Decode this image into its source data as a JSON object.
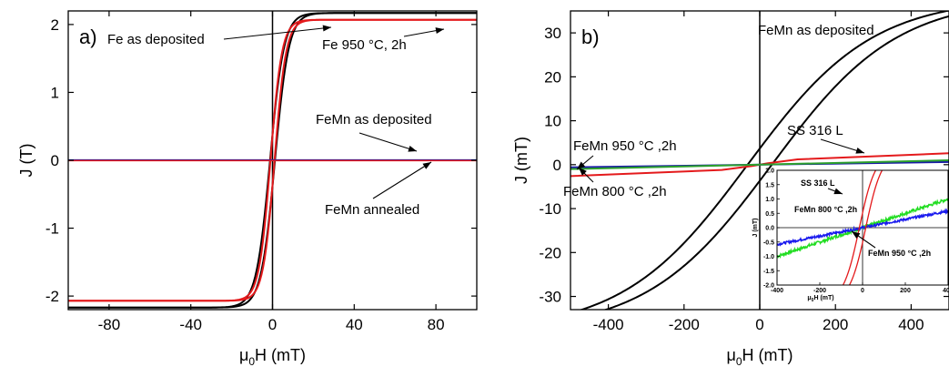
{
  "chart_data": [
    {
      "type": "line",
      "panel_label": "a)",
      "xlabel_main": "μ",
      "xlabel_sub": "0",
      "xlabel_rest": "H (mT)",
      "ylabel": "J (T)",
      "xlim": [
        -100,
        100
      ],
      "ylim": [
        -2.2,
        2.2
      ],
      "xticks": [
        -80,
        -40,
        0,
        40,
        80
      ],
      "yticks": [
        -2,
        -1,
        0,
        1,
        2
      ],
      "grid": false,
      "series": [
        {
          "name": "Fe as deposited",
          "color": "#000000",
          "kind": "loop",
          "Ms": 2.17,
          "Hc": 1.2,
          "width": 6.8
        },
        {
          "name": "Fe 950 °C, 2h",
          "color": "#e41a1c",
          "kind": "loop",
          "Ms": 2.07,
          "Hc": 1.0,
          "width": 5.6
        },
        {
          "name": "FeMn as deposited",
          "color": "#1a1aa6",
          "kind": "flat",
          "value": 0.005
        },
        {
          "name": "FeMn annealed",
          "color": "#e41a1c",
          "kind": "flat",
          "value": -0.005
        }
      ],
      "annotations": [
        {
          "text": "Fe as deposited"
        },
        {
          "text": "Fe 950 °C, 2h"
        },
        {
          "text": "FeMn as deposited"
        },
        {
          "text": "FeMn annealed"
        }
      ]
    },
    {
      "type": "line",
      "panel_label": "b)",
      "xlabel_main": "μ",
      "xlabel_sub": "0",
      "xlabel_rest": "H (mT)",
      "ylabel": "J (mT)",
      "xlim": [
        -500,
        500
      ],
      "ylim": [
        -33,
        35
      ],
      "xticks": [
        -400,
        -200,
        0,
        200,
        400
      ],
      "yticks": [
        -30,
        -20,
        -10,
        0,
        10,
        20,
        30
      ],
      "grid": false,
      "series": [
        {
          "name": "FeMn as deposited",
          "color": "#000000",
          "kind": "loop",
          "Ms": 38,
          "Hc": 32,
          "width": 330
        },
        {
          "name": "SS 316 L",
          "color": "#e41a1c",
          "kind": "line",
          "points": [
            [
              -500,
              -2.6
            ],
            [
              -100,
              -1.2
            ],
            [
              -20,
              -0.3
            ],
            [
              20,
              0.3
            ],
            [
              100,
              1.2
            ],
            [
              500,
              2.6
            ]
          ]
        },
        {
          "name": "FeMn 950 °C ,2h",
          "color": "#1a1aa6",
          "kind": "line",
          "points": [
            [
              -500,
              -0.6
            ],
            [
              500,
              0.6
            ]
          ]
        },
        {
          "name": "FeMn 800 °C ,2h",
          "color": "#2ca02c",
          "kind": "line",
          "points": [
            [
              -500,
              -1.0
            ],
            [
              500,
              1.0
            ]
          ]
        }
      ],
      "annotations": [
        {
          "text": "FeMn as deposited"
        },
        {
          "text": "SS 316 L"
        },
        {
          "text": "FeMn 950 °C ,2h"
        },
        {
          "text": "FeMn 800 °C ,2h"
        }
      ],
      "inset": {
        "xlim": [
          -400,
          400
        ],
        "ylim": [
          -2.0,
          2.0
        ],
        "xticks": [
          -400,
          -200,
          0,
          200,
          400
        ],
        "yticks": [
          -2.0,
          -1.5,
          -1.0,
          -0.5,
          0.0,
          0.5,
          1.0,
          1.5,
          2.0
        ],
        "ytick_labels": [
          "-2.0",
          "-1.5",
          "-1.0",
          "-0.5",
          "0.0",
          "0.5",
          "1.0",
          "1.5",
          "2.0"
        ],
        "ylabel": "J (mT)",
        "xlabel_main": "μ",
        "xlabel_sub": "0",
        "xlabel_rest": "H (mT)",
        "series": [
          {
            "name": "SS 316 L",
            "color": "#e41a1c",
            "kind": "loop",
            "Ms": 2.6,
            "Hc": 15,
            "width": 75
          },
          {
            "name": "FeMn 800 °C ,2h",
            "color": "#22dd22",
            "kind": "noisy",
            "slope": 0.0025,
            "noise": 0.05
          },
          {
            "name": "FeMn 950 °C ,2h",
            "color": "#1a1aee",
            "kind": "noisy",
            "slope": 0.00145,
            "noise": 0.04
          }
        ],
        "annotations": [
          {
            "text": "SS 316 L"
          },
          {
            "text": "FeMn 800 °C ,2h"
          },
          {
            "text": "FeMn 950 °C ,2h"
          }
        ]
      }
    }
  ]
}
